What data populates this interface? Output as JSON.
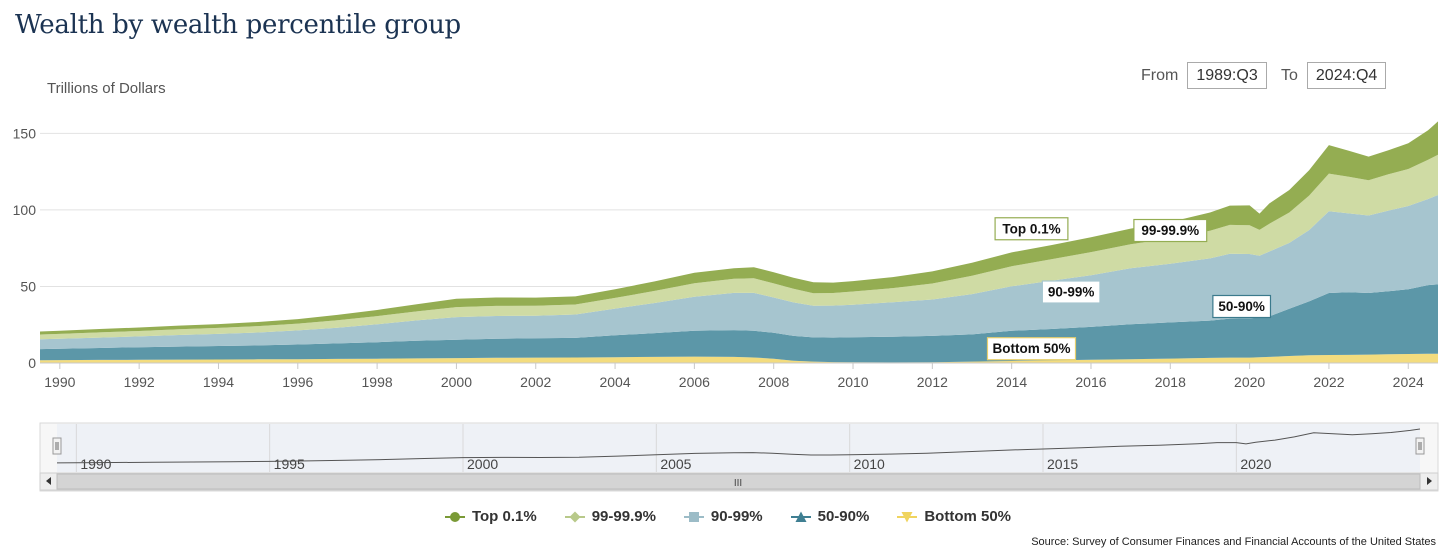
{
  "page_title": "Wealth by wealth percentile group",
  "range": {
    "from_label": "From",
    "from_value": "1989:Q3",
    "to_label": "To",
    "to_value": "2024:Q4"
  },
  "source": "Source: Survey of Consumer Finances and Financial Accounts of the United States",
  "chart_data": {
    "type": "area",
    "stacked": true,
    "title": "Wealth by wealth percentile group",
    "ylabel": "Trillions of Dollars",
    "xlabel": "",
    "xlim": [
      1989.5,
      2024.75
    ],
    "ylim": [
      0,
      160
    ],
    "yticks": [
      0,
      50,
      100,
      150
    ],
    "xticks": [
      1990,
      1992,
      1994,
      1996,
      1998,
      2000,
      2002,
      2004,
      2006,
      2008,
      2010,
      2012,
      2014,
      2016,
      2018,
      2020,
      2022,
      2024
    ],
    "x": [
      1989.5,
      1990,
      1991,
      1992,
      1993,
      1994,
      1995,
      1996,
      1997,
      1998,
      1999,
      2000,
      2001,
      2002,
      2003,
      2004,
      2005,
      2006,
      2007,
      2007.5,
      2008,
      2008.5,
      2009,
      2009.5,
      2010,
      2011,
      2012,
      2013,
      2014,
      2015,
      2016,
      2017,
      2018,
      2019,
      2019.5,
      2020,
      2020.25,
      2020.5,
      2021,
      2021.5,
      2022,
      2022.5,
      2023,
      2023.5,
      2024,
      2024.5,
      2024.75
    ],
    "series": [
      {
        "name": "Bottom 50%",
        "color": "#f3dc7e",
        "values": [
          1.8,
          1.9,
          2.0,
          2.1,
          2.2,
          2.3,
          2.4,
          2.5,
          2.7,
          2.8,
          3.0,
          3.2,
          3.4,
          3.5,
          3.6,
          3.8,
          4.0,
          4.2,
          4.0,
          3.6,
          2.8,
          1.5,
          0.9,
          0.6,
          0.5,
          0.4,
          0.5,
          0.9,
          1.3,
          1.7,
          2.1,
          2.5,
          2.9,
          3.3,
          3.5,
          3.5,
          3.8,
          4.0,
          4.6,
          5.0,
          5.2,
          5.3,
          5.5,
          5.7,
          5.9,
          6.0,
          6.1
        ]
      },
      {
        "name": "50-90%",
        "color": "#5c97a8",
        "values": [
          7.3,
          7.4,
          7.8,
          8.2,
          8.5,
          8.8,
          9.1,
          9.6,
          10.1,
          10.8,
          11.5,
          12.0,
          12.4,
          12.6,
          12.8,
          14.3,
          15.5,
          16.8,
          17.5,
          17.4,
          16.9,
          16.2,
          15.8,
          16.0,
          16.3,
          16.8,
          17.2,
          17.8,
          19.7,
          20.5,
          21.5,
          22.8,
          23.6,
          24.4,
          25.5,
          25.6,
          25.9,
          26.5,
          30.8,
          35.2,
          40.5,
          40.9,
          40.2,
          41.1,
          42.2,
          44.9,
          45.2
        ]
      },
      {
        "name": "90-99%",
        "color": "#a6c5cf",
        "values": [
          6.4,
          6.5,
          6.8,
          7.1,
          7.6,
          7.9,
          8.4,
          9.2,
          10.2,
          11.7,
          13.3,
          14.8,
          14.9,
          14.8,
          15.3,
          17.4,
          19.7,
          22.3,
          24.3,
          24.8,
          23.1,
          21.9,
          20.7,
          20.9,
          21.3,
          22.5,
          23.8,
          26.3,
          29.1,
          31.5,
          33.7,
          36.6,
          38.3,
          40.6,
          42.3,
          42.1,
          40.4,
          42.3,
          43.0,
          46.6,
          53.4,
          51.5,
          50.6,
          52.7,
          54.4,
          56.2,
          58.4
        ]
      },
      {
        "name": "99-99.9%",
        "color": "#cfdba4",
        "values": [
          3.1,
          3.2,
          3.4,
          3.5,
          3.7,
          3.9,
          4.2,
          4.4,
          4.9,
          5.3,
          5.9,
          6.5,
          6.6,
          6.5,
          6.5,
          7.0,
          7.9,
          8.8,
          9.2,
          9.5,
          9.2,
          8.9,
          8.2,
          8.2,
          8.6,
          9.2,
          10.4,
          12.0,
          13.1,
          14.0,
          15.1,
          15.7,
          16.5,
          18.1,
          18.9,
          18.7,
          16.8,
          18.2,
          19.9,
          22.5,
          24.6,
          23.9,
          23.1,
          23.8,
          24.2,
          25.6,
          26.3
        ]
      },
      {
        "name": "Top 0.1%",
        "color": "#94ad52",
        "values": [
          2.0,
          2.1,
          2.2,
          2.3,
          2.4,
          2.5,
          2.7,
          3.0,
          3.5,
          4.0,
          4.7,
          5.4,
          5.5,
          5.3,
          5.3,
          5.7,
          6.2,
          6.8,
          6.9,
          7.2,
          7.3,
          7.2,
          7.1,
          6.8,
          6.8,
          7.2,
          7.9,
          8.5,
          9.0,
          9.3,
          9.7,
          10.2,
          10.8,
          11.9,
          12.6,
          13.0,
          10.7,
          13.2,
          14.7,
          16.6,
          18.6,
          17.0,
          15.4,
          15.7,
          16.8,
          19.3,
          21.8
        ]
      }
    ],
    "annotations": [
      {
        "text": "Top 0.1%",
        "series": "Top 0.1%",
        "x": 2014.5
      },
      {
        "text": "99-99.9%",
        "series": "99-99.9%",
        "x": 2018
      },
      {
        "text": "90-99%",
        "series": "90-99%",
        "x": 2015.5
      },
      {
        "text": "50-90%",
        "series": "50-90%",
        "x": 2019.8
      },
      {
        "text": "Bottom 50%",
        "series": "Bottom 50%",
        "x": 2014.5
      }
    ],
    "navigator": {
      "xticks": [
        1990,
        1995,
        2000,
        2005,
        2010,
        2015,
        2020
      ],
      "scroll_glyph": "III"
    },
    "legend_position": "bottom"
  }
}
